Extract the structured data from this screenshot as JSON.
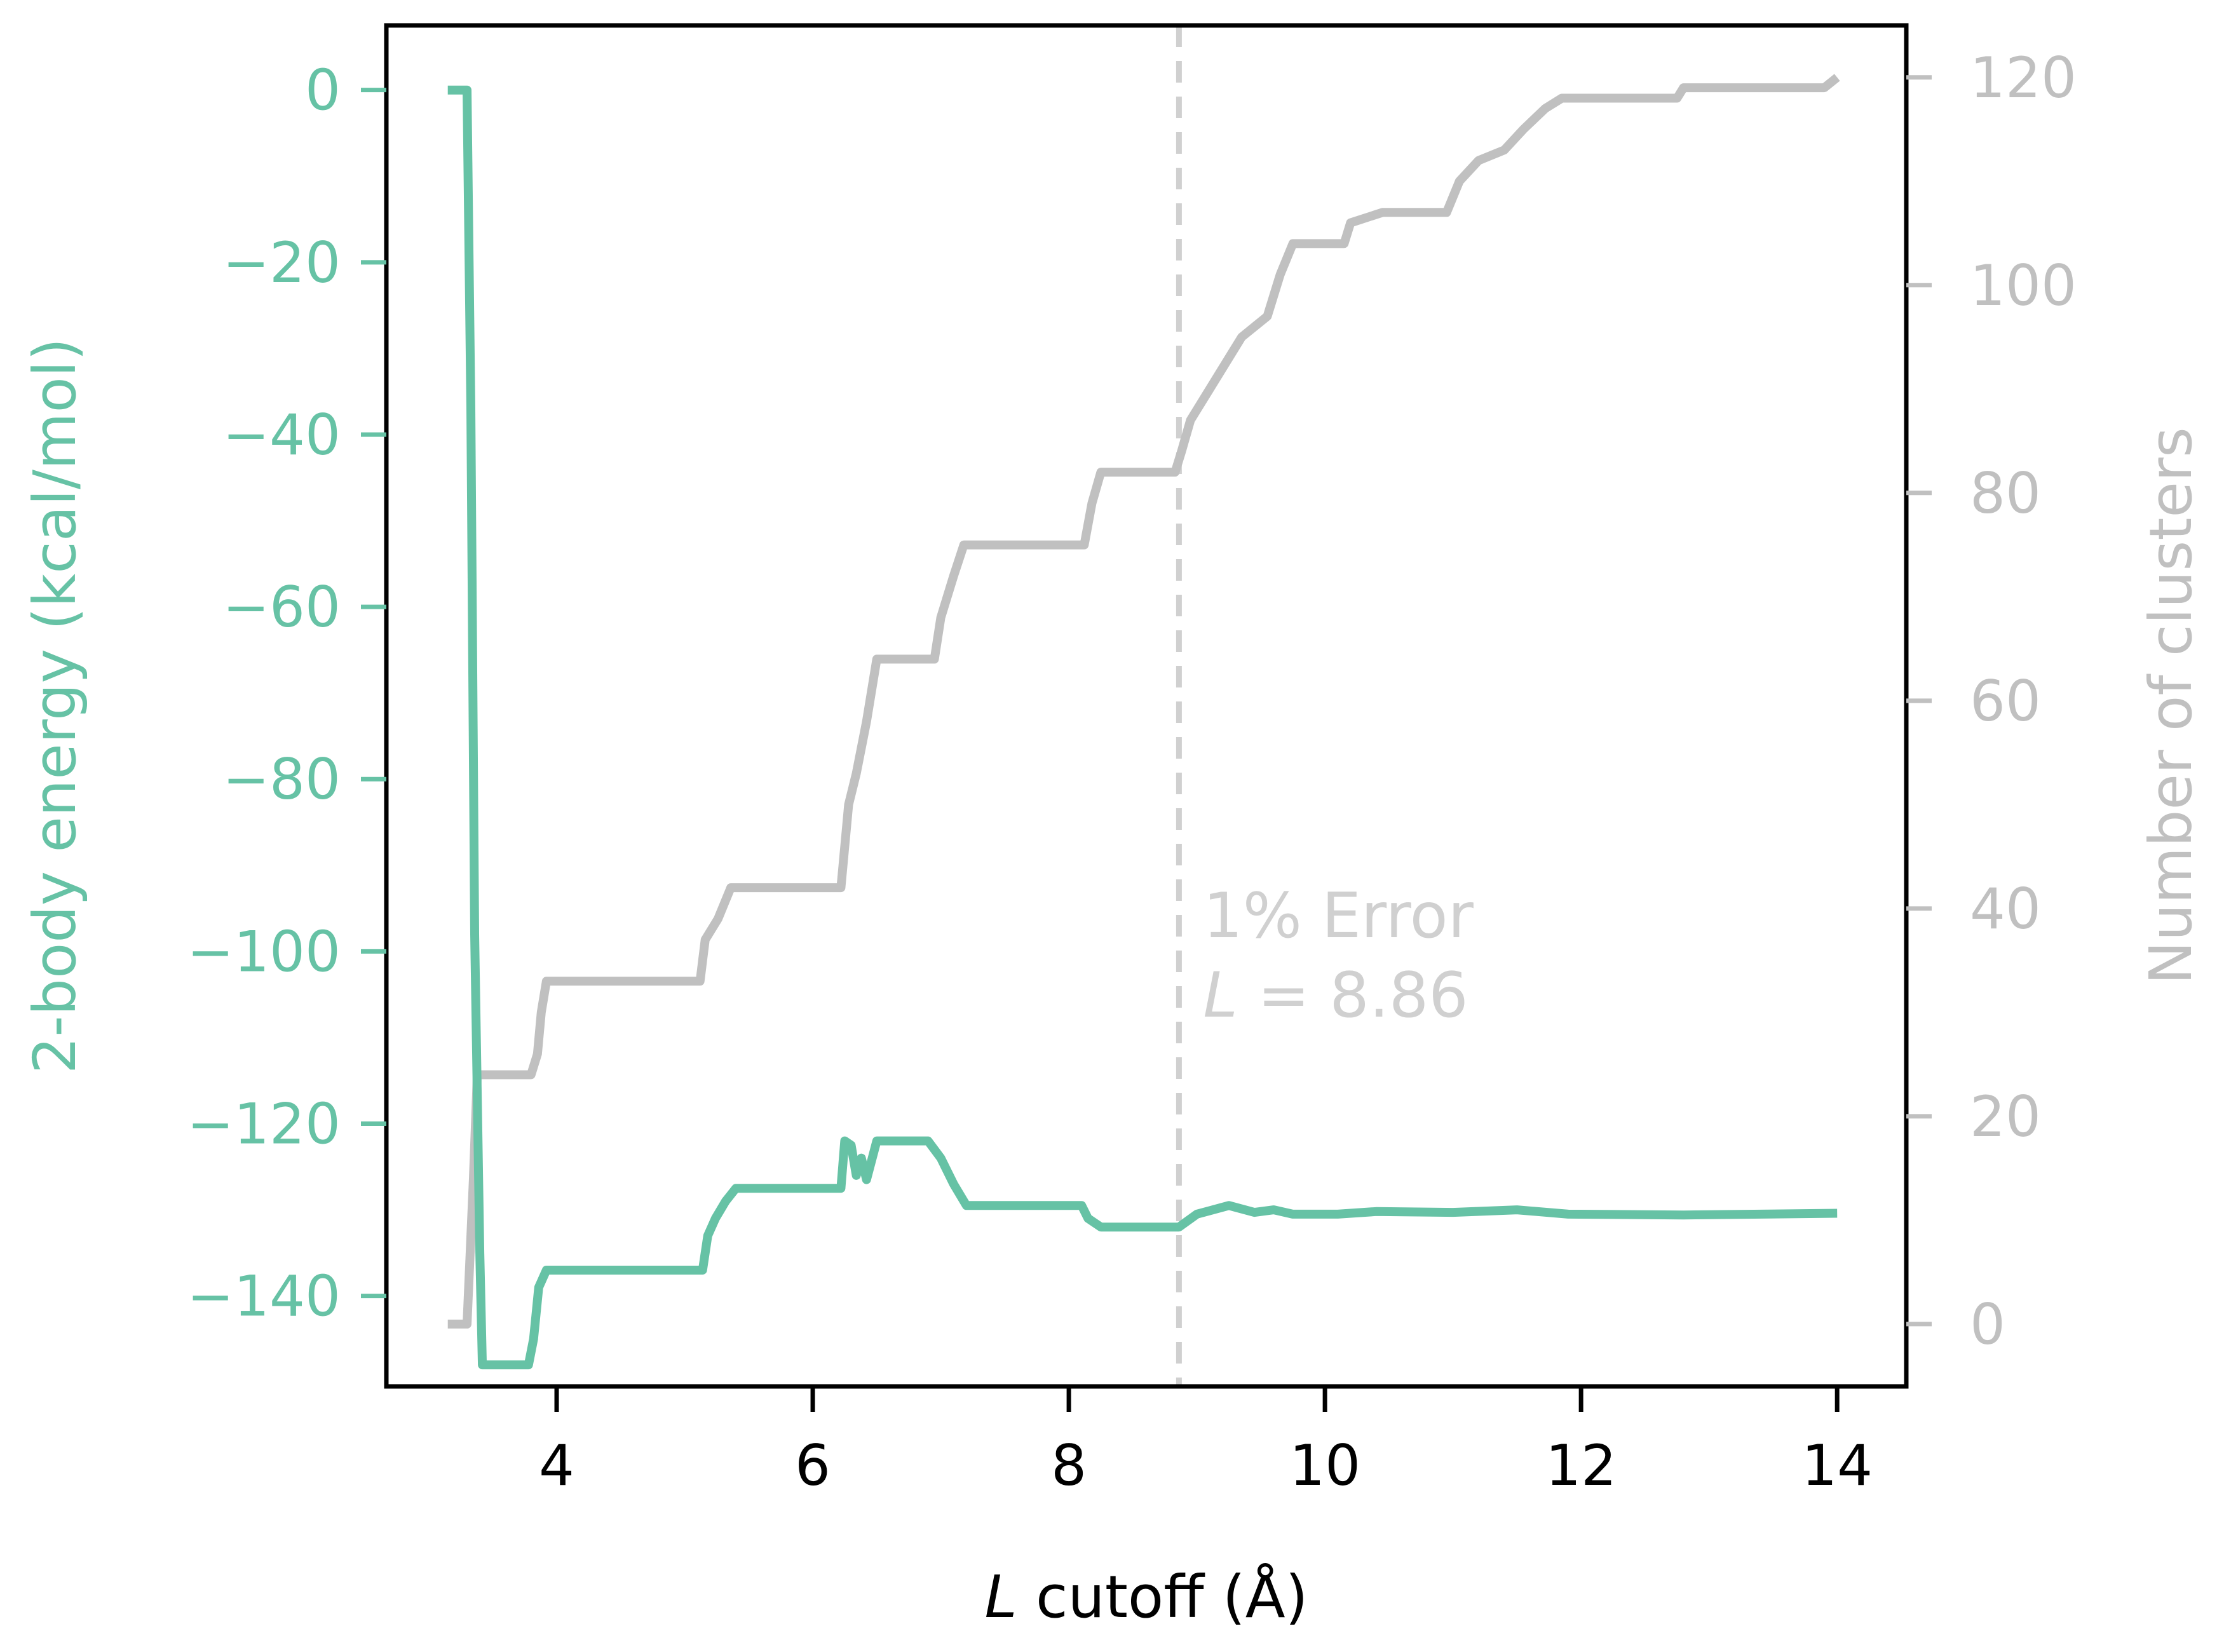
{
  "colors": {
    "energy": "#66c2a5",
    "clusters": "#c0c0c0",
    "annotation": "#d0d0d0",
    "frame": "#000000",
    "xaxis": "#000000"
  },
  "chart_data": {
    "type": "line",
    "title": "",
    "xlabel_italic": "L",
    "xlabel_rest": " cutoff (Å)",
    "ylabel_left": "2-body energy (kcal/mol)",
    "ylabel_right": "Number of clusters",
    "xlim": [
      2.67,
      14.54
    ],
    "ylim_left": [
      -150.5,
      7.5
    ],
    "ylim_right": [
      -6,
      125
    ],
    "x_ticks": [
      4,
      6,
      8,
      10,
      12,
      14
    ],
    "x_tick_labels": [
      "4",
      "6",
      "8",
      "10",
      "12",
      "14"
    ],
    "y_left_ticks": [
      0,
      -20,
      -40,
      -60,
      -80,
      -100,
      -120,
      -140
    ],
    "y_left_tick_labels": [
      "0",
      "−20",
      "−40",
      "−60",
      "−80",
      "−100",
      "−120",
      "−140"
    ],
    "y_right_ticks": [
      0,
      20,
      40,
      60,
      80,
      100,
      120
    ],
    "y_right_tick_labels": [
      "0",
      "20",
      "40",
      "60",
      "80",
      "100",
      "120"
    ],
    "grid": false,
    "legend": "none",
    "annotation": {
      "x": 8.86,
      "line1": "1% Error",
      "line2_italic": "L",
      "line2_rest": " = 8.86"
    },
    "series": [
      {
        "axis": "left",
        "points": [
          [
            3.15,
            0
          ],
          [
            3.3,
            0
          ],
          [
            3.33,
            -37
          ],
          [
            3.36,
            -98
          ],
          [
            3.4,
            -135
          ],
          [
            3.42,
            -148
          ],
          [
            3.78,
            -148
          ],
          [
            3.82,
            -145
          ],
          [
            3.86,
            -139
          ],
          [
            3.92,
            -137
          ],
          [
            5.14,
            -137
          ],
          [
            5.18,
            -133
          ],
          [
            5.24,
            -131
          ],
          [
            5.32,
            -129
          ],
          [
            5.4,
            -127.5
          ],
          [
            6.22,
            -127.5
          ],
          [
            6.25,
            -122
          ],
          [
            6.3,
            -122.5
          ],
          [
            6.34,
            -126
          ],
          [
            6.38,
            -124
          ],
          [
            6.42,
            -126.5
          ],
          [
            6.5,
            -122
          ],
          [
            6.9,
            -122
          ],
          [
            7.0,
            -124
          ],
          [
            7.1,
            -127
          ],
          [
            7.2,
            -129.5
          ],
          [
            8.1,
            -129.5
          ],
          [
            8.15,
            -131
          ],
          [
            8.25,
            -132
          ],
          [
            8.86,
            -132
          ],
          [
            9.0,
            -130.5
          ],
          [
            9.25,
            -129.5
          ],
          [
            9.45,
            -130.3
          ],
          [
            9.6,
            -130
          ],
          [
            9.75,
            -130.5
          ],
          [
            10.1,
            -130.5
          ],
          [
            10.4,
            -130.2
          ],
          [
            11.0,
            -130.3
          ],
          [
            11.5,
            -130
          ],
          [
            11.9,
            -130.5
          ],
          [
            12.8,
            -130.6
          ],
          [
            14.0,
            -130.4
          ]
        ]
      },
      {
        "axis": "right",
        "points": [
          [
            3.15,
            0
          ],
          [
            3.3,
            0
          ],
          [
            3.35,
            14
          ],
          [
            3.38,
            24
          ],
          [
            3.8,
            24
          ],
          [
            3.85,
            26
          ],
          [
            3.88,
            30
          ],
          [
            3.92,
            33
          ],
          [
            5.12,
            33
          ],
          [
            5.16,
            37
          ],
          [
            5.26,
            39
          ],
          [
            5.36,
            42
          ],
          [
            6.22,
            42
          ],
          [
            6.28,
            50
          ],
          [
            6.34,
            53
          ],
          [
            6.42,
            58
          ],
          [
            6.5,
            64
          ],
          [
            6.95,
            64
          ],
          [
            7.0,
            68
          ],
          [
            7.1,
            72
          ],
          [
            7.18,
            75
          ],
          [
            8.12,
            75
          ],
          [
            8.18,
            79
          ],
          [
            8.25,
            82
          ],
          [
            8.83,
            82
          ],
          [
            8.88,
            84
          ],
          [
            8.95,
            87
          ],
          [
            9.05,
            89
          ],
          [
            9.2,
            92
          ],
          [
            9.35,
            95
          ],
          [
            9.55,
            97
          ],
          [
            9.65,
            101
          ],
          [
            9.75,
            104
          ],
          [
            10.15,
            104
          ],
          [
            10.2,
            106
          ],
          [
            10.45,
            107
          ],
          [
            10.95,
            107
          ],
          [
            11.05,
            110
          ],
          [
            11.2,
            112
          ],
          [
            11.4,
            113
          ],
          [
            11.55,
            115
          ],
          [
            11.72,
            117
          ],
          [
            11.85,
            118
          ],
          [
            12.75,
            118
          ],
          [
            12.8,
            119
          ],
          [
            13.9,
            119
          ],
          [
            14.0,
            120
          ]
        ]
      }
    ]
  }
}
